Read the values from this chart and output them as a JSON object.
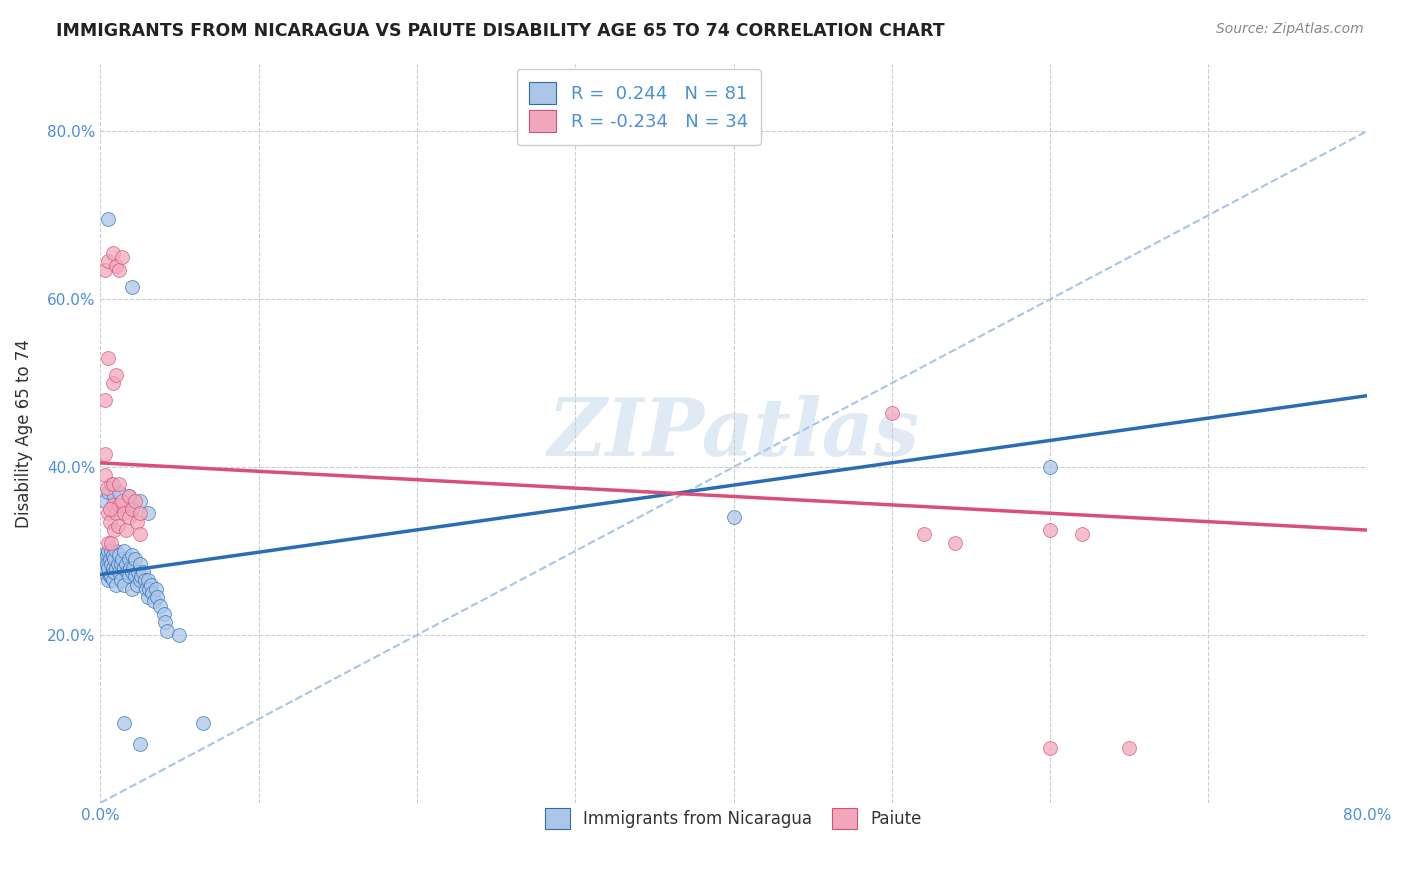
{
  "title": "IMMIGRANTS FROM NICARAGUA VS PAIUTE DISABILITY AGE 65 TO 74 CORRELATION CHART",
  "source": "Source: ZipAtlas.com",
  "ylabel": "Disability Age 65 to 74",
  "xlim": [
    0.0,
    0.8
  ],
  "ylim": [
    0.0,
    0.88
  ],
  "xticks": [
    0.0,
    0.1,
    0.2,
    0.3,
    0.4,
    0.5,
    0.6,
    0.7,
    0.8
  ],
  "yticks": [
    0.0,
    0.2,
    0.4,
    0.6,
    0.8
  ],
  "legend_label1": "Immigrants from Nicaragua",
  "legend_label2": "Paiute",
  "r1": 0.244,
  "n1": 81,
  "r2": -0.234,
  "n2": 34,
  "color1": "#adc6e8",
  "color2": "#f2a8bc",
  "trendline1_color": "#2a6db5",
  "trendline2_color": "#d94f7a",
  "dash_color": "#a8c4e8",
  "watermark": "ZIPatlas",
  "blue_scatter": [
    [
      0.001,
      0.285
    ],
    [
      0.002,
      0.295
    ],
    [
      0.002,
      0.275
    ],
    [
      0.003,
      0.29
    ],
    [
      0.003,
      0.28
    ],
    [
      0.004,
      0.295
    ],
    [
      0.004,
      0.285
    ],
    [
      0.005,
      0.3
    ],
    [
      0.005,
      0.28
    ],
    [
      0.005,
      0.265
    ],
    [
      0.006,
      0.29
    ],
    [
      0.006,
      0.27
    ],
    [
      0.007,
      0.3
    ],
    [
      0.007,
      0.285
    ],
    [
      0.007,
      0.27
    ],
    [
      0.008,
      0.295
    ],
    [
      0.008,
      0.28
    ],
    [
      0.008,
      0.265
    ],
    [
      0.009,
      0.29
    ],
    [
      0.009,
      0.275
    ],
    [
      0.01,
      0.3
    ],
    [
      0.01,
      0.28
    ],
    [
      0.01,
      0.26
    ],
    [
      0.011,
      0.285
    ],
    [
      0.012,
      0.295
    ],
    [
      0.012,
      0.275
    ],
    [
      0.013,
      0.285
    ],
    [
      0.013,
      0.265
    ],
    [
      0.014,
      0.29
    ],
    [
      0.015,
      0.3
    ],
    [
      0.015,
      0.28
    ],
    [
      0.015,
      0.26
    ],
    [
      0.016,
      0.285
    ],
    [
      0.017,
      0.275
    ],
    [
      0.018,
      0.29
    ],
    [
      0.018,
      0.27
    ],
    [
      0.019,
      0.28
    ],
    [
      0.02,
      0.295
    ],
    [
      0.02,
      0.275
    ],
    [
      0.02,
      0.255
    ],
    [
      0.021,
      0.28
    ],
    [
      0.022,
      0.29
    ],
    [
      0.022,
      0.27
    ],
    [
      0.023,
      0.26
    ],
    [
      0.024,
      0.275
    ],
    [
      0.025,
      0.285
    ],
    [
      0.025,
      0.265
    ],
    [
      0.026,
      0.27
    ],
    [
      0.027,
      0.275
    ],
    [
      0.028,
      0.265
    ],
    [
      0.029,
      0.255
    ],
    [
      0.03,
      0.265
    ],
    [
      0.03,
      0.245
    ],
    [
      0.031,
      0.255
    ],
    [
      0.032,
      0.26
    ],
    [
      0.033,
      0.25
    ],
    [
      0.034,
      0.24
    ],
    [
      0.035,
      0.255
    ],
    [
      0.036,
      0.245
    ],
    [
      0.038,
      0.235
    ],
    [
      0.04,
      0.225
    ],
    [
      0.041,
      0.215
    ],
    [
      0.042,
      0.205
    ],
    [
      0.05,
      0.2
    ],
    [
      0.003,
      0.36
    ],
    [
      0.005,
      0.37
    ],
    [
      0.007,
      0.38
    ],
    [
      0.009,
      0.365
    ],
    [
      0.01,
      0.35
    ],
    [
      0.012,
      0.37
    ],
    [
      0.015,
      0.355
    ],
    [
      0.018,
      0.365
    ],
    [
      0.02,
      0.35
    ],
    [
      0.025,
      0.36
    ],
    [
      0.03,
      0.345
    ],
    [
      0.005,
      0.695
    ],
    [
      0.02,
      0.615
    ],
    [
      0.015,
      0.095
    ],
    [
      0.025,
      0.07
    ],
    [
      0.065,
      0.095
    ],
    [
      0.4,
      0.34
    ],
    [
      0.6,
      0.4
    ]
  ],
  "pink_scatter": [
    [
      0.003,
      0.415
    ],
    [
      0.003,
      0.39
    ],
    [
      0.004,
      0.375
    ],
    [
      0.005,
      0.345
    ],
    [
      0.005,
      0.31
    ],
    [
      0.006,
      0.335
    ],
    [
      0.007,
      0.31
    ],
    [
      0.008,
      0.38
    ],
    [
      0.008,
      0.355
    ],
    [
      0.009,
      0.325
    ],
    [
      0.01,
      0.345
    ],
    [
      0.011,
      0.33
    ],
    [
      0.012,
      0.38
    ],
    [
      0.012,
      0.355
    ],
    [
      0.014,
      0.36
    ],
    [
      0.015,
      0.345
    ],
    [
      0.016,
      0.325
    ],
    [
      0.018,
      0.365
    ],
    [
      0.018,
      0.34
    ],
    [
      0.02,
      0.35
    ],
    [
      0.022,
      0.36
    ],
    [
      0.023,
      0.335
    ],
    [
      0.025,
      0.345
    ],
    [
      0.025,
      0.32
    ],
    [
      0.003,
      0.635
    ],
    [
      0.005,
      0.645
    ],
    [
      0.008,
      0.655
    ],
    [
      0.01,
      0.64
    ],
    [
      0.012,
      0.635
    ],
    [
      0.014,
      0.65
    ],
    [
      0.003,
      0.48
    ],
    [
      0.005,
      0.53
    ],
    [
      0.008,
      0.5
    ],
    [
      0.01,
      0.51
    ],
    [
      0.5,
      0.465
    ],
    [
      0.52,
      0.32
    ],
    [
      0.54,
      0.31
    ],
    [
      0.6,
      0.325
    ],
    [
      0.62,
      0.32
    ],
    [
      0.6,
      0.065
    ],
    [
      0.65,
      0.065
    ],
    [
      0.006,
      0.35
    ]
  ],
  "blue_trendline": [
    [
      0.0,
      0.272
    ],
    [
      0.8,
      0.485
    ]
  ],
  "pink_trendline": [
    [
      0.0,
      0.405
    ],
    [
      0.8,
      0.325
    ]
  ]
}
